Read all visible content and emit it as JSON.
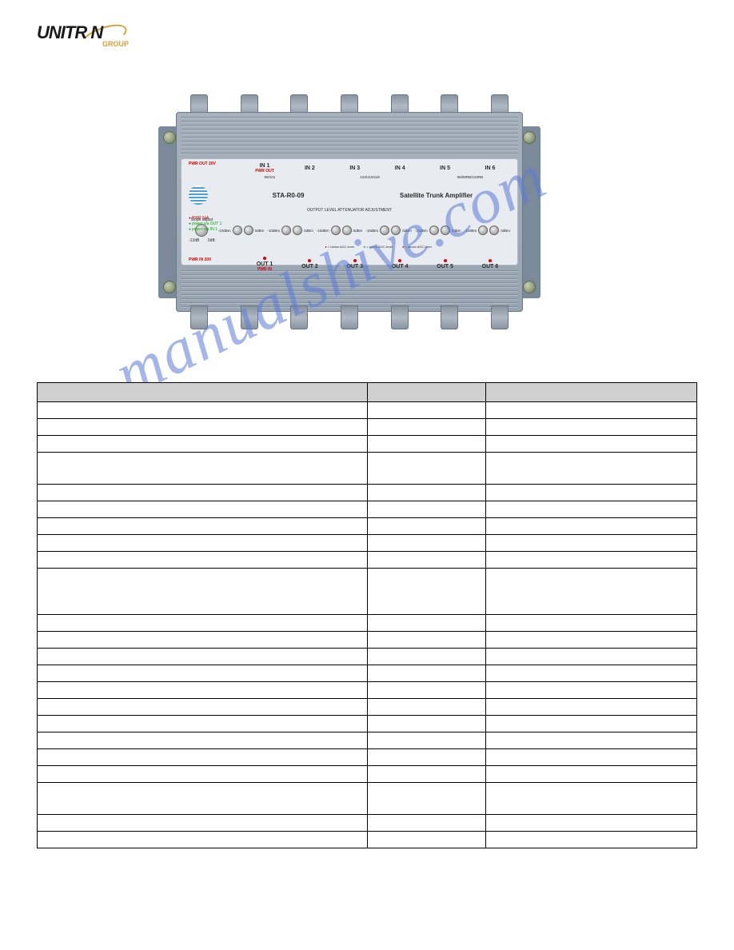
{
  "logo": {
    "main": "UNITR  N",
    "sub": "GROUP"
  },
  "device": {
    "pwr_out": "PWR OUT 20V",
    "pwr_in": "PWR IN 20V",
    "in_labels": [
      "IN 1",
      "IN 2",
      "IN 3",
      "IN 4",
      "IN 5",
      "IN 6"
    ],
    "in1_sub": "PWR OUT",
    "freq1": "99/101",
    "freq2": "103/110/119",
    "freq3": "95/99RB/103RB",
    "model": "STA-R0-09",
    "title": "Satellite Trunk Amplifier",
    "adj": "OUTPUT LEVEL ATTENUATOR ADJUSTMENT",
    "slope": "Slope adjust",
    "slope_lo": "-12dB",
    "slope_hi": "0dB",
    "pwr_na": "PWR N/A",
    "pwr_out1": "power via OUT 1",
    "pwr_in1": "power via IN 1",
    "knob_lo": "-10dBm",
    "knob_hi": "0dBm",
    "agc_below": "= below AGC level",
    "agc_within": "= within AGC level",
    "agc_above": "= above AGC level",
    "out_labels": [
      "OUT 1",
      "OUT 2",
      "OUT 3",
      "OUT 4",
      "OUT 5",
      "OUT 6"
    ],
    "out1_sub": "PWR IN"
  },
  "watermark": "manualshive.com",
  "table": {
    "headers": [
      "",
      "",
      ""
    ],
    "rows_heights": [
      "short",
      "short",
      "short",
      "med",
      "short",
      "short",
      "short",
      "short",
      "short",
      "tall",
      "short",
      "short",
      "short",
      "short",
      "short",
      "short",
      "short",
      "short",
      "short",
      "short",
      "med",
      "short",
      "short"
    ],
    "col_widths": {
      "c1": "50%",
      "c2": "18%",
      "c3": "32%"
    }
  }
}
